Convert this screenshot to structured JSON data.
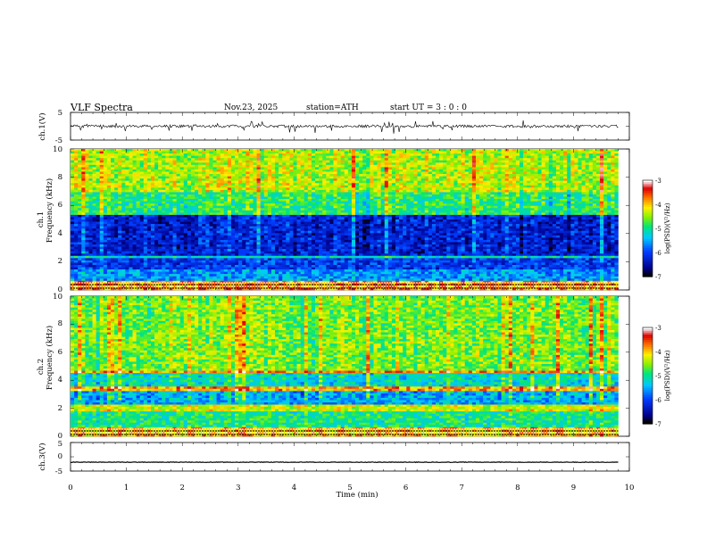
{
  "header": {
    "title": "VLF  Spectra",
    "date": "Nov.23, 2025",
    "station": "station=ATH",
    "start": "start  UT  =    3  : 0  : 0"
  },
  "chart_data": [
    {
      "type": "line",
      "name": "ch.1 waveform",
      "ylabel": "ch.1(V)",
      "ylim": [
        -5,
        5
      ],
      "yticks": [
        "5",
        "-5"
      ],
      "xlim": [
        0,
        10
      ],
      "description_values": "broadband noise waveform centred near 0 V with spikes to about +/-3 V",
      "mean": 0.0
    },
    {
      "type": "heatmap",
      "name": "ch.1 spectrogram",
      "ylabel": "ch.1\nFrequency  (kHz)",
      "ylabel_lines": [
        "ch.1",
        "Frequency  (kHz)"
      ],
      "ylim": [
        0,
        10
      ],
      "yticks": [
        "0",
        "2",
        "4",
        "6",
        "8",
        "10"
      ],
      "xlim": [
        0,
        9.8
      ],
      "colorbar": {
        "label": "log(PSD)(V²/Hz)",
        "range": [
          -7,
          -3
        ],
        "ticks": [
          "-3",
          "-4",
          "-5",
          "-6",
          "-7"
        ]
      },
      "bands": [
        {
          "from": 0,
          "to": 0.7,
          "level": -3.8
        },
        {
          "from": 0.7,
          "to": 1.4,
          "level": -5.6
        },
        {
          "from": 1.4,
          "to": 2.2,
          "level": -6.1
        },
        {
          "from": 2.2,
          "to": 2.5,
          "level": -5.2
        },
        {
          "from": 2.5,
          "to": 5.3,
          "level": -6.3
        },
        {
          "from": 5.3,
          "to": 7.0,
          "level": -4.9
        },
        {
          "from": 7.0,
          "to": 10,
          "level": -4.4
        }
      ]
    },
    {
      "type": "heatmap",
      "name": "ch.2 spectrogram",
      "ylabel": "ch.2\nFrequency  (kHz)",
      "ylabel_lines": [
        "ch.2",
        "Frequency  (kHz)"
      ],
      "ylim": [
        0,
        10
      ],
      "yticks": [
        "0",
        "2",
        "4",
        "6",
        "8",
        "10"
      ],
      "xlim": [
        0,
        9.8
      ],
      "colorbar": {
        "label": "log(PSD)(V²/Hz)",
        "range": [
          -7,
          -3
        ],
        "ticks": [
          "-3",
          "-4",
          "-5",
          "-6",
          "-7"
        ]
      },
      "bands": [
        {
          "from": 0,
          "to": 0.7,
          "level": -4.0
        },
        {
          "from": 0.7,
          "to": 1.8,
          "level": -5.0
        },
        {
          "from": 1.8,
          "to": 2.2,
          "level": -4.3
        },
        {
          "from": 2.2,
          "to": 3.2,
          "level": -5.5
        },
        {
          "from": 3.2,
          "to": 3.6,
          "level": -3.9
        },
        {
          "from": 3.6,
          "to": 4.5,
          "level": -5.2
        },
        {
          "from": 4.5,
          "to": 4.7,
          "level": -3.8
        },
        {
          "from": 4.7,
          "to": 10,
          "level": -4.6
        }
      ]
    },
    {
      "type": "line",
      "name": "ch.3 waveform",
      "ylabel": "ch.3(V)",
      "ylim": [
        -5,
        5
      ],
      "yticks": [
        "5",
        "0",
        "-5"
      ],
      "xlim": [
        0,
        10
      ],
      "mean": -1.9
    }
  ],
  "xaxis": {
    "label": "Time  (min)",
    "range": [
      0,
      10
    ],
    "ticks": [
      "0",
      "1",
      "2",
      "3",
      "4",
      "5",
      "6",
      "7",
      "8",
      "9",
      "10"
    ]
  },
  "colors": {
    "axis": "#000000",
    "background": "#ffffff"
  }
}
